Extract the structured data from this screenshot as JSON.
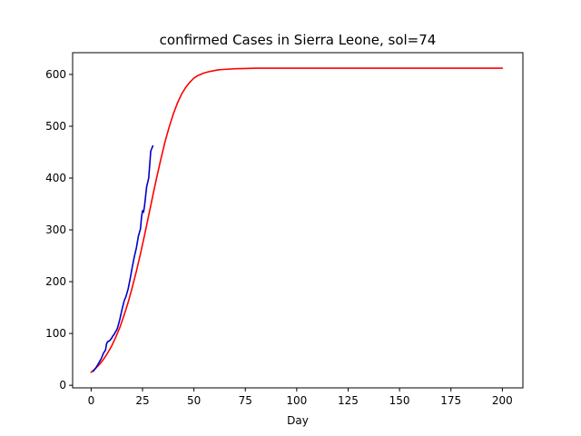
{
  "chart_data": {
    "type": "line",
    "title": "confirmed Cases in Sierra Leone, sol=74",
    "xlabel": "Day",
    "ylabel": "",
    "xlim": [
      -9,
      210
    ],
    "ylim": [
      -5,
      642
    ],
    "x_ticks": [
      0,
      25,
      50,
      75,
      100,
      125,
      150,
      175,
      200
    ],
    "x_tick_labels": [
      "0",
      "25",
      "50",
      "75",
      "100",
      "125",
      "150",
      "175",
      "200"
    ],
    "y_ticks": [
      0,
      100,
      200,
      300,
      400,
      500,
      600
    ],
    "y_tick_labels": [
      "0",
      "100",
      "200",
      "300",
      "400",
      "500",
      "600"
    ],
    "grid": false,
    "series": [
      {
        "color": "#ff0000",
        "x": [
          0,
          2,
          4,
          6,
          8,
          10,
          12,
          14,
          16,
          18,
          20,
          22,
          24,
          26,
          28,
          30,
          32,
          34,
          36,
          38,
          40,
          42,
          44,
          46,
          48,
          50,
          52,
          55,
          58,
          62,
          66,
          70,
          75,
          80,
          90,
          100,
          125,
          150,
          175,
          200
        ],
        "y": [
          25,
          32,
          40,
          50,
          62,
          76,
          93,
          112,
          135,
          160,
          189,
          220,
          254,
          290,
          328,
          366,
          403,
          438,
          471,
          499,
          524,
          545,
          562,
          575,
          585,
          593,
          598,
          603,
          606,
          609,
          610,
          611,
          611.5,
          612,
          612,
          612,
          612,
          612,
          612,
          612
        ]
      },
      {
        "color": "#0000cc",
        "x": [
          1,
          2,
          3,
          4,
          5,
          6,
          7,
          7.5,
          8,
          9,
          10,
          10.5,
          11,
          12,
          12.5,
          13,
          14,
          15,
          16,
          17,
          18,
          19,
          20,
          21,
          22,
          23,
          24,
          24.5,
          25,
          25.5,
          26,
          27,
          28,
          29,
          30
        ],
        "y": [
          27,
          32,
          38,
          45,
          52,
          62,
          68,
          80,
          84,
          86,
          91,
          95,
          97,
          104,
          107,
          113,
          128,
          146,
          162,
          172,
          186,
          206,
          228,
          248,
          265,
          288,
          302,
          324,
          337,
          334,
          347,
          383,
          400,
          452,
          462
        ]
      }
    ]
  }
}
